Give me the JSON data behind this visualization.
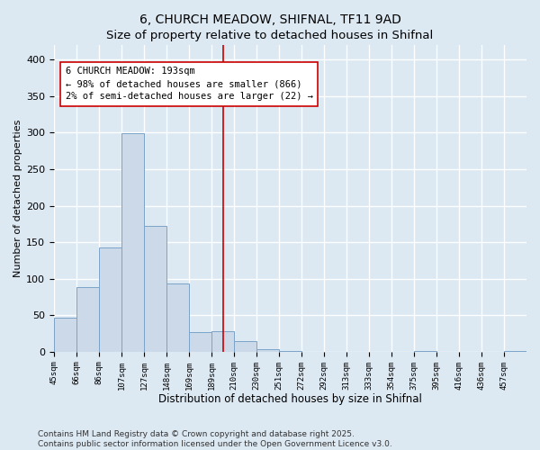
{
  "title": "6, CHURCH MEADOW, SHIFNAL, TF11 9AD",
  "subtitle": "Size of property relative to detached houses in Shifnal",
  "xlabel": "Distribution of detached houses by size in Shifnal",
  "ylabel": "Number of detached properties",
  "bin_labels": [
    "45sqm",
    "66sqm",
    "86sqm",
    "107sqm",
    "127sqm",
    "148sqm",
    "169sqm",
    "189sqm",
    "210sqm",
    "230sqm",
    "251sqm",
    "272sqm",
    "292sqm",
    "313sqm",
    "333sqm",
    "354sqm",
    "375sqm",
    "395sqm",
    "416sqm",
    "436sqm",
    "457sqm"
  ],
  "bar_heights": [
    47,
    88,
    143,
    299,
    172,
    94,
    27,
    28,
    14,
    3,
    1,
    0,
    0,
    0,
    0,
    0,
    1,
    0,
    0,
    0,
    1
  ],
  "bar_color": "#ccd9e8",
  "bar_edge_color": "#7ba3c8",
  "bar_edge_width": 0.7,
  "vline_position": 7.5,
  "vline_color": "#cc0000",
  "vline_linewidth": 1.2,
  "annotation_text": "6 CHURCH MEADOW: 193sqm\n← 98% of detached houses are smaller (866)\n2% of semi-detached houses are larger (22) →",
  "annotation_box_facecolor": "white",
  "annotation_box_edgecolor": "#cc0000",
  "annotation_fontsize": 7.5,
  "ylim": [
    0,
    420
  ],
  "yticks": [
    0,
    50,
    100,
    150,
    200,
    250,
    300,
    350,
    400
  ],
  "bg_color": "#dce8f2",
  "plot_bg_color": "#dce8f2",
  "grid_color": "white",
  "grid_linewidth": 1.0,
  "title_fontsize": 10,
  "subtitle_fontsize": 9.5,
  "xlabel_fontsize": 8.5,
  "ylabel_fontsize": 8,
  "ytick_fontsize": 8,
  "xtick_fontsize": 6.5,
  "footer_line1": "Contains HM Land Registry data © Crown copyright and database right 2025.",
  "footer_line2": "Contains public sector information licensed under the Open Government Licence v3.0.",
  "footer_fontsize": 6.5
}
